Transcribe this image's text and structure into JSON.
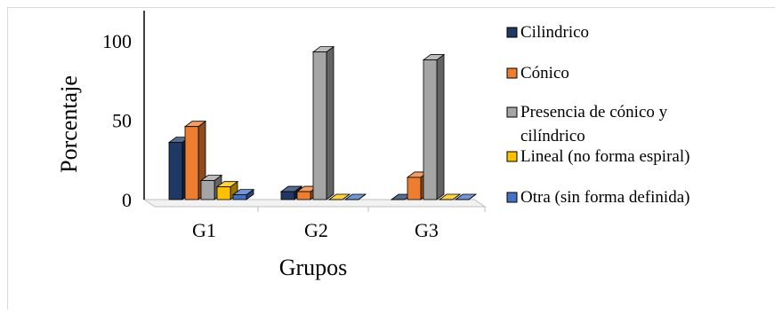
{
  "chart_data": {
    "type": "bar",
    "categories": [
      "G1",
      "G2",
      "G3"
    ],
    "series": [
      {
        "name": "Cilindrico",
        "values": [
          36,
          5,
          0
        ],
        "color": "#1f3864"
      },
      {
        "name": "Cónico",
        "values": [
          46,
          5,
          14
        ],
        "color": "#ed7d31"
      },
      {
        "name": "Presencia de cónico y cilíndrico",
        "values": [
          12,
          93,
          88
        ],
        "color": "#a5a5a5"
      },
      {
        "name": "Lineal (no forma espiral)",
        "values": [
          8,
          0,
          0
        ],
        "color": "#ffc000"
      },
      {
        "name": "Otra (sin forma definida)",
        "values": [
          3,
          0,
          0
        ],
        "color": "#4472c4"
      }
    ],
    "legend_lines": [
      [
        "Cilindrico"
      ],
      [
        "Cónico"
      ],
      [
        "Presencia de cónico y",
        "cilíndrico"
      ],
      [
        "Lineal (no forma espiral)"
      ],
      [
        "Otra (sin forma definida)"
      ]
    ],
    "xlabel": "Grupos",
    "ylabel": "Porcentaje",
    "yticks": [
      0,
      50,
      100
    ],
    "ylim": [
      0,
      125
    ],
    "legend": "right",
    "grid": false,
    "style": "3d-clustered-bar"
  }
}
